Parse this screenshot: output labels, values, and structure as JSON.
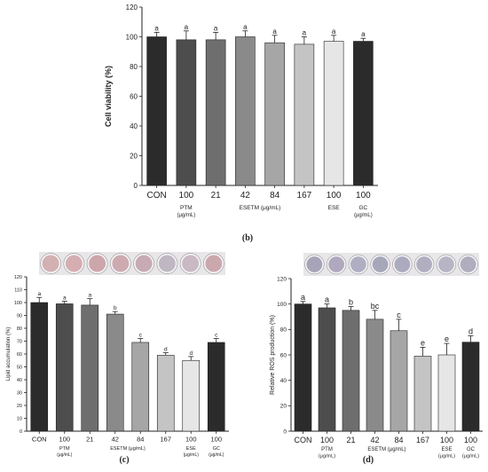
{
  "panels": [
    {
      "label": "(b)",
      "ylabel": "Cell viability (%)",
      "ylim": [
        0,
        120
      ],
      "yticks": [
        0,
        20,
        40,
        60,
        80,
        100,
        120
      ],
      "wells": [],
      "tick_labels": [
        "CON",
        "100",
        "21",
        "42",
        "84",
        "167",
        "100",
        "100"
      ],
      "groups": [
        {
          "text": "PTM",
          "sub": "(μg/mL)",
          "from": 1,
          "to": 1
        },
        {
          "text": "ESETM (μg/mL)",
          "sub": "",
          "from": 2,
          "to": 5
        },
        {
          "text": "ESE",
          "sub": "",
          "from": 6,
          "to": 6
        },
        {
          "text": "GC",
          "sub": "(μg/mL)",
          "from": 7,
          "to": 7
        }
      ]
    },
    {
      "label": "(c)",
      "ylabel": "Lipid accumulation (%)",
      "ylim": [
        0,
        120
      ],
      "yticks": [
        0,
        10,
        20,
        30,
        40,
        50,
        60,
        70,
        80,
        90,
        100,
        110,
        120
      ],
      "wells": [
        "#cfa8aa",
        "#d2a6aa",
        "#c99da3",
        "#c9a2a8",
        "#c2a2ac",
        "#b9b0bd",
        "#c4b3bc",
        "#c79ea6"
      ],
      "tick_labels": [
        "CON",
        "100",
        "21",
        "42",
        "84",
        "167",
        "100",
        "100"
      ],
      "groups": [
        {
          "text": "PTM",
          "sub": "(μg/mL)",
          "from": 1,
          "to": 1
        },
        {
          "text": "ESETM (μg/mL)",
          "sub": "",
          "from": 2,
          "to": 5
        },
        {
          "text": "ESE",
          "sub": "(μg/mL)",
          "from": 6,
          "to": 6
        },
        {
          "text": "GC",
          "sub": "(μg/mL)",
          "from": 7,
          "to": 7
        }
      ]
    },
    {
      "label": "(d)",
      "ylabel": "Relative ROS production (%)",
      "ylim": [
        0,
        120
      ],
      "yticks": [
        0,
        20,
        40,
        60,
        80,
        100,
        120
      ],
      "wells": [
        "#9f9ab1",
        "#a7a0b8",
        "#a8a6bd",
        "#9e9eb4",
        "#a4a2b8",
        "#a9a6ba",
        "#b0aec0",
        "#a9a5b9"
      ],
      "tick_labels": [
        "CON",
        "100",
        "21",
        "42",
        "84",
        "167",
        "100",
        "100"
      ],
      "groups": [
        {
          "text": "PTM",
          "sub": "(μg/mL)",
          "from": 1,
          "to": 1
        },
        {
          "text": "ESETM (μg/mL)",
          "sub": "",
          "from": 2,
          "to": 5
        },
        {
          "text": "ESE",
          "sub": "(μg/mL)",
          "from": 6,
          "to": 6
        },
        {
          "text": "GC",
          "sub": "(μg/mL)",
          "from": 7,
          "to": 7
        }
      ]
    }
  ],
  "chart_data": [
    {
      "type": "bar",
      "title": "(b)",
      "xlabel": "",
      "ylabel": "Cell viability (%)",
      "ylim": [
        0,
        120
      ],
      "categories": [
        "CON",
        "100",
        "21",
        "42",
        "84",
        "167",
        "100",
        "100"
      ],
      "values": [
        100,
        98,
        98,
        100,
        96,
        95,
        97,
        97
      ],
      "errors": [
        3,
        6,
        5,
        4,
        5,
        5,
        4,
        2
      ],
      "significance": [
        "a",
        "a",
        "a",
        "a",
        "a",
        "a",
        "a",
        "a"
      ],
      "colors": [
        "#2b2b2b",
        "#4d4d4d",
        "#6e6e6e",
        "#8a8a8a",
        "#a6a6a6",
        "#c4c4c4",
        "#e6e6e6",
        "#2b2b2b"
      ]
    },
    {
      "type": "bar",
      "title": "(c)",
      "xlabel": "",
      "ylabel": "Lipid accumulation (%)",
      "ylim": [
        0,
        120
      ],
      "categories": [
        "CON",
        "100",
        "21",
        "42",
        "84",
        "167",
        "100",
        "100"
      ],
      "values": [
        100,
        99,
        98,
        91,
        69,
        59,
        55,
        69
      ],
      "errors": [
        4,
        2,
        5,
        2,
        3,
        2,
        3,
        3
      ],
      "significance": [
        "a",
        "a",
        "a",
        "b",
        "c",
        "d",
        "d",
        "c"
      ],
      "colors": [
        "#2b2b2b",
        "#4d4d4d",
        "#6e6e6e",
        "#8a8a8a",
        "#a6a6a6",
        "#c4c4c4",
        "#e6e6e6",
        "#2b2b2b"
      ]
    },
    {
      "type": "bar",
      "title": "(d)",
      "xlabel": "",
      "ylabel": "Relative ROS production (%)",
      "ylim": [
        0,
        120
      ],
      "categories": [
        "CON",
        "100",
        "21",
        "42",
        "84",
        "167",
        "100",
        "100"
      ],
      "values": [
        100,
        97,
        95,
        88,
        79,
        59,
        60,
        70
      ],
      "errors": [
        2,
        3,
        3,
        7,
        9,
        7,
        9,
        5
      ],
      "significance": [
        "a",
        "a",
        "b",
        "bc",
        "c",
        "e",
        "e",
        "d"
      ],
      "colors": [
        "#2b2b2b",
        "#4d4d4d",
        "#6e6e6e",
        "#8a8a8a",
        "#a6a6a6",
        "#c4c4c4",
        "#e6e6e6",
        "#2b2b2b"
      ]
    }
  ]
}
